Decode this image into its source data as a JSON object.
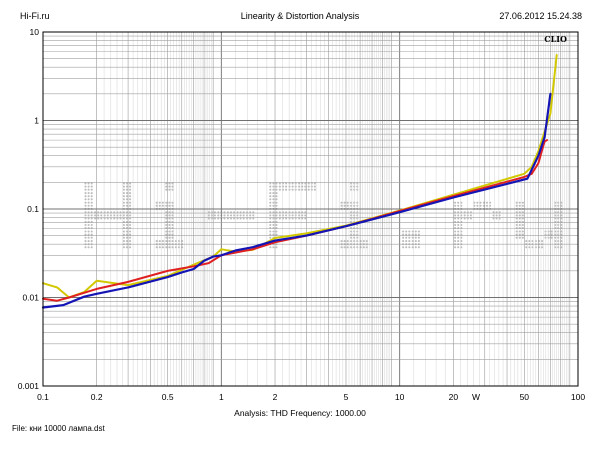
{
  "header": {
    "site": "Hi-Fi.ru",
    "title": "Linearity & Distortion Analysis",
    "timestamp": "27.06.2012 15.24.38"
  },
  "footer": {
    "file": "File: кни 10000 лампа.dst"
  },
  "chart_data": {
    "type": "line",
    "x_scale": "log",
    "y_scale": "log",
    "xlim": [
      0.1,
      100
    ],
    "ylim": [
      0.001,
      10
    ],
    "x_ticks": [
      0.1,
      0.2,
      0.5,
      1,
      2,
      5,
      10,
      20,
      50,
      100
    ],
    "x_tick_labels": [
      "0.1",
      "0.2",
      "0.5",
      "1",
      "2",
      "5",
      "10",
      "20",
      "50",
      "100"
    ],
    "x_unit_label": "W",
    "y_ticks": [
      0.001,
      0.01,
      0.1,
      1,
      10
    ],
    "y_tick_labels": [
      "0.001",
      "0.01",
      "0.1",
      "1",
      "10"
    ],
    "xlabel": "Analysis: THD   Frequency: 1000.00",
    "brand": "CLIO",
    "grid": true,
    "watermark": "Hi-Fi.ru",
    "series": [
      {
        "color": "#d2c800",
        "x": [
          0.1,
          0.12,
          0.14,
          0.17,
          0.2,
          0.3,
          0.5,
          0.7,
          0.9,
          1.0,
          1.2,
          1.5,
          2,
          3,
          5,
          10,
          20,
          50,
          55,
          60,
          70,
          76
        ],
        "y": [
          0.0145,
          0.013,
          0.01,
          0.0115,
          0.0155,
          0.0138,
          0.0175,
          0.0235,
          0.029,
          0.035,
          0.033,
          0.0345,
          0.047,
          0.053,
          0.065,
          0.096,
          0.145,
          0.25,
          0.3,
          0.45,
          1.2,
          5.5
        ]
      },
      {
        "color": "#e02020",
        "x": [
          0.1,
          0.12,
          0.14,
          0.17,
          0.2,
          0.3,
          0.5,
          0.7,
          0.85,
          1.0,
          1.5,
          2,
          3,
          5,
          10,
          20,
          50,
          55,
          60,
          65,
          67
        ],
        "y": [
          0.0097,
          0.0092,
          0.01,
          0.0113,
          0.0125,
          0.015,
          0.02,
          0.0225,
          0.0245,
          0.03,
          0.035,
          0.042,
          0.05,
          0.064,
          0.095,
          0.14,
          0.23,
          0.25,
          0.33,
          0.58,
          0.6
        ]
      },
      {
        "color": "#1515b5",
        "x": [
          0.1,
          0.13,
          0.17,
          0.2,
          0.3,
          0.5,
          0.6,
          0.7,
          0.8,
          0.9,
          1.0,
          1.2,
          1.5,
          2,
          3,
          5,
          10,
          20,
          52,
          60,
          65,
          70
        ],
        "y": [
          0.0077,
          0.0082,
          0.0102,
          0.011,
          0.013,
          0.017,
          0.0192,
          0.021,
          0.026,
          0.029,
          0.03,
          0.034,
          0.037,
          0.044,
          0.05,
          0.064,
          0.092,
          0.135,
          0.22,
          0.4,
          0.65,
          2.0
        ]
      }
    ]
  }
}
